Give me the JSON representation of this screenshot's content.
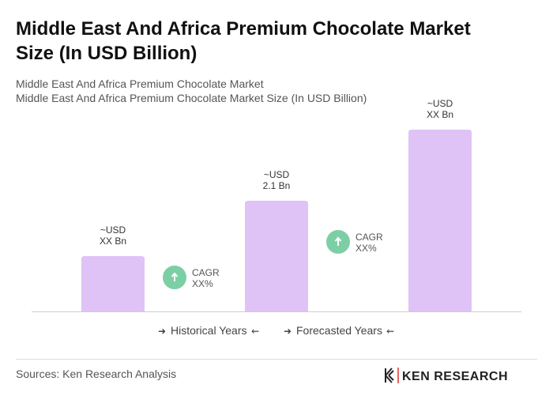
{
  "chart_data": {
    "type": "bar",
    "title": [
      "Middle East And Africa Premium Chocolate Market",
      "Size (In USD Billion)"
    ],
    "subtitle": [
      "Middle East And Africa Premium Chocolate Market",
      "Middle East And Africa Premium Chocolate Market Size (In USD Billion)"
    ],
    "categories": [
      null,
      null,
      null
    ],
    "values": [
      1.05,
      2.1,
      3.45
    ],
    "value_labels": [
      [
        "~USD",
        "XX Bn"
      ],
      [
        "~USD",
        "2.1 Bn"
      ],
      [
        "~USD",
        "XX Bn"
      ]
    ],
    "color": "#dfc3f6",
    "annotations": [
      {
        "title": "CAGR",
        "value": "XX%"
      },
      {
        "title": "CAGR",
        "value": "XX%"
      }
    ],
    "annotation_color": "#7ccfa4",
    "groups": [
      "Historical Years",
      "Forecasted Years"
    ],
    "source": "Sources: Ken Research Analysis",
    "brand": "KEN RESEARCH"
  }
}
